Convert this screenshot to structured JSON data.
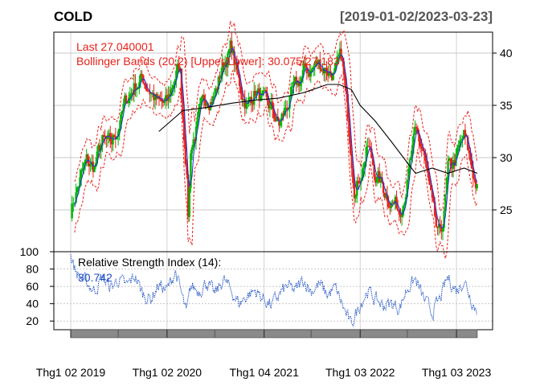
{
  "header": {
    "symbol": "COLD",
    "date_range": "[2019-01-02/2023-03-23]"
  },
  "price_panel": {
    "legend_last": "Last 27.040001",
    "legend_bbands": "Bollinger Bands (20,2) [Upper/Lower]: 30.075/27.183",
    "y_ticks": [
      "25",
      "30",
      "35",
      "40"
    ]
  },
  "rsi_panel": {
    "legend_title": "Relative Strength Index (14):",
    "legend_value": "30.742",
    "y_ticks": [
      "20",
      "40",
      "60",
      "80",
      "100"
    ]
  },
  "x_axis": {
    "tick_labels": [
      "Thg1 02 2019",
      "Thg1 02 2020",
      "Thg1 04 2021",
      "Thg1 03 2022",
      "Thg1 03 2023"
    ]
  },
  "colors": {
    "up_candle": "#00b400",
    "down_candle": "#e8211a",
    "bbands": "#e8211a",
    "sma20": "#1f2fd6",
    "long_ma": "#000000",
    "rsi_line": "#2255c4",
    "grid": "#c8c8c8"
  },
  "chart_data": {
    "type": "line",
    "title": "COLD",
    "subtitle": "[2019-01-02/2023-03-23]",
    "x_range": [
      "2019-01-02",
      "2023-03-23"
    ],
    "price_ylim": [
      21,
      42
    ],
    "rsi_ylim": [
      10,
      100
    ],
    "grid": true,
    "x_ticks": [
      "2019-01-02",
      "2020-01-02",
      "2021-01-04",
      "2022-01-03",
      "2023-01-03"
    ],
    "last": 27.040001,
    "bbands_upper": 30.075,
    "bbands_lower": 27.183,
    "rsi_last": 30.742,
    "series": [
      {
        "name": "Close",
        "points": [
          [
            "2019-01-02",
            25.0
          ],
          [
            "2019-02-01",
            27.5
          ],
          [
            "2019-03-01",
            29.5
          ],
          [
            "2019-04-01",
            29.0
          ],
          [
            "2019-05-01",
            31.5
          ],
          [
            "2019-06-03",
            31.0
          ],
          [
            "2019-07-01",
            33.0
          ],
          [
            "2019-08-01",
            35.5
          ],
          [
            "2019-09-03",
            37.0
          ],
          [
            "2019-10-01",
            37.5
          ],
          [
            "2019-11-01",
            36.5
          ],
          [
            "2019-12-02",
            35.0
          ],
          [
            "2020-01-02",
            35.0
          ],
          [
            "2020-02-03",
            38.0
          ],
          [
            "2020-02-20",
            38.5
          ],
          [
            "2020-03-16",
            29.0
          ],
          [
            "2020-03-23",
            24.0
          ],
          [
            "2020-04-01",
            31.0
          ],
          [
            "2020-05-01",
            33.5
          ],
          [
            "2020-06-01",
            36.0
          ],
          [
            "2020-07-01",
            36.0
          ],
          [
            "2020-08-03",
            39.0
          ],
          [
            "2020-09-01",
            40.5
          ],
          [
            "2020-10-01",
            37.0
          ],
          [
            "2020-11-02",
            35.0
          ],
          [
            "2020-12-01",
            36.5
          ],
          [
            "2021-01-04",
            35.0
          ],
          [
            "2021-02-01",
            34.5
          ],
          [
            "2021-03-01",
            33.0
          ],
          [
            "2021-04-01",
            35.0
          ],
          [
            "2021-05-03",
            36.5
          ],
          [
            "2021-06-01",
            38.0
          ],
          [
            "2021-07-01",
            38.5
          ],
          [
            "2021-08-02",
            39.0
          ],
          [
            "2021-09-01",
            38.5
          ],
          [
            "2021-10-01",
            38.0
          ],
          [
            "2021-10-25",
            39.5
          ],
          [
            "2021-11-08",
            36.0
          ],
          [
            "2021-11-29",
            31.0
          ],
          [
            "2021-12-15",
            27.0
          ],
          [
            "2022-01-03",
            28.5
          ],
          [
            "2022-02-01",
            31.0
          ],
          [
            "2022-03-01",
            28.5
          ],
          [
            "2022-04-01",
            27.0
          ],
          [
            "2022-05-02",
            26.0
          ],
          [
            "2022-06-01",
            25.0
          ],
          [
            "2022-07-01",
            28.0
          ],
          [
            "2022-08-01",
            32.0
          ],
          [
            "2022-09-01",
            30.5
          ],
          [
            "2022-10-03",
            25.0
          ],
          [
            "2022-10-25",
            22.0
          ],
          [
            "2022-11-15",
            24.0
          ],
          [
            "2022-12-01",
            28.5
          ],
          [
            "2023-01-03",
            30.0
          ],
          [
            "2023-02-01",
            32.0
          ],
          [
            "2023-02-20",
            30.0
          ],
          [
            "2023-03-23",
            27.04
          ]
        ]
      },
      {
        "name": "Long moving average",
        "points": [
          [
            "2019-12-02",
            32.5
          ],
          [
            "2020-03-02",
            34.5
          ],
          [
            "2020-06-01",
            34.8
          ],
          [
            "2020-09-01",
            35.2
          ],
          [
            "2020-12-01",
            35.5
          ],
          [
            "2021-03-01",
            35.7
          ],
          [
            "2021-06-01",
            36.2
          ],
          [
            "2021-09-01",
            37.0
          ],
          [
            "2021-10-15",
            37.0
          ],
          [
            "2021-12-01",
            36.5
          ],
          [
            "2022-01-03",
            35.0
          ],
          [
            "2022-03-01",
            33.5
          ],
          [
            "2022-05-02",
            31.5
          ],
          [
            "2022-07-01",
            29.5
          ],
          [
            "2022-08-01",
            28.5
          ],
          [
            "2022-10-03",
            29.0
          ],
          [
            "2022-12-01",
            28.5
          ],
          [
            "2023-02-01",
            29.0
          ],
          [
            "2023-03-23",
            28.5
          ]
        ]
      },
      {
        "name": "RSI (14)",
        "points": [
          [
            "2019-01-02",
            95
          ],
          [
            "2019-01-15",
            82
          ],
          [
            "2019-02-01",
            72
          ],
          [
            "2019-03-01",
            65
          ],
          [
            "2019-04-01",
            55
          ],
          [
            "2019-05-01",
            70
          ],
          [
            "2019-06-03",
            58
          ],
          [
            "2019-07-01",
            68
          ],
          [
            "2019-08-01",
            60
          ],
          [
            "2019-09-03",
            72
          ],
          [
            "2019-10-01",
            52
          ],
          [
            "2019-11-01",
            45
          ],
          [
            "2019-12-02",
            62
          ],
          [
            "2020-01-02",
            55
          ],
          [
            "2020-02-03",
            78
          ],
          [
            "2020-03-16",
            28
          ],
          [
            "2020-04-01",
            60
          ],
          [
            "2020-05-01",
            55
          ],
          [
            "2020-06-01",
            65
          ],
          [
            "2020-07-01",
            50
          ],
          [
            "2020-08-03",
            68
          ],
          [
            "2020-09-01",
            55
          ],
          [
            "2020-10-01",
            40
          ],
          [
            "2020-11-02",
            50
          ],
          [
            "2020-12-01",
            55
          ],
          [
            "2021-01-04",
            45
          ],
          [
            "2021-02-01",
            38
          ],
          [
            "2021-03-01",
            50
          ],
          [
            "2021-04-01",
            60
          ],
          [
            "2021-05-03",
            55
          ],
          [
            "2021-06-01",
            68
          ],
          [
            "2021-07-01",
            55
          ],
          [
            "2021-08-02",
            62
          ],
          [
            "2021-09-01",
            50
          ],
          [
            "2021-10-01",
            58
          ],
          [
            "2021-11-08",
            30
          ],
          [
            "2021-11-29",
            15
          ],
          [
            "2022-01-03",
            40
          ],
          [
            "2022-02-01",
            55
          ],
          [
            "2022-03-01",
            45
          ],
          [
            "2022-04-01",
            38
          ],
          [
            "2022-05-02",
            40
          ],
          [
            "2022-06-01",
            35
          ],
          [
            "2022-07-01",
            58
          ],
          [
            "2022-08-01",
            68
          ],
          [
            "2022-09-01",
            45
          ],
          [
            "2022-10-03",
            30
          ],
          [
            "2022-11-01",
            45
          ],
          [
            "2022-12-01",
            70
          ],
          [
            "2023-01-03",
            55
          ],
          [
            "2023-02-01",
            68
          ],
          [
            "2023-03-01",
            45
          ],
          [
            "2023-03-23",
            30.742
          ]
        ]
      }
    ]
  }
}
